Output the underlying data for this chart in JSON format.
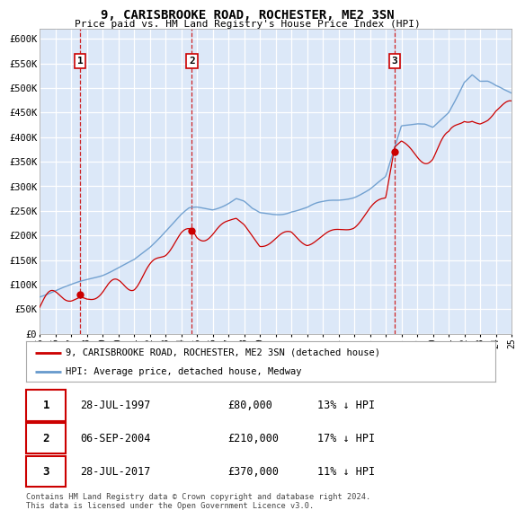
{
  "title": "9, CARISBROOKE ROAD, ROCHESTER, ME2 3SN",
  "subtitle": "Price paid vs. HM Land Registry's House Price Index (HPI)",
  "property_label": "9, CARISBROOKE ROAD, ROCHESTER, ME2 3SN (detached house)",
  "hpi_label": "HPI: Average price, detached house, Medway",
  "sale_points": [
    {
      "date_num": 1997.57,
      "price": 80000,
      "label": "1"
    },
    {
      "date_num": 2004.68,
      "price": 210000,
      "label": "2"
    },
    {
      "date_num": 2017.57,
      "price": 370000,
      "label": "3"
    }
  ],
  "sale_annotations": [
    {
      "label": "1",
      "date": "28-JUL-1997",
      "price": "£80,000",
      "hpi_diff": "13% ↓ HPI"
    },
    {
      "label": "2",
      "date": "06-SEP-2004",
      "price": "£210,000",
      "hpi_diff": "17% ↓ HPI"
    },
    {
      "label": "3",
      "date": "28-JUL-2017",
      "price": "£370,000",
      "hpi_diff": "11% ↓ HPI"
    }
  ],
  "xmin": 1995.0,
  "xmax": 2025.0,
  "ymin": 0,
  "ymax": 620000,
  "yticks": [
    0,
    50000,
    100000,
    150000,
    200000,
    250000,
    300000,
    350000,
    400000,
    450000,
    500000,
    550000,
    600000
  ],
  "ytick_labels": [
    "£0",
    "£50K",
    "£100K",
    "£150K",
    "£200K",
    "£250K",
    "£300K",
    "£350K",
    "£400K",
    "£450K",
    "£500K",
    "£550K",
    "£600K"
  ],
  "property_color": "#cc0000",
  "hpi_color": "#6699cc",
  "background_color": "#dce8f8",
  "footer": "Contains HM Land Registry data © Crown copyright and database right 2024.\nThis data is licensed under the Open Government Licence v3.0.",
  "xtick_years": [
    1995,
    1996,
    1997,
    1998,
    1999,
    2000,
    2001,
    2002,
    2003,
    2004,
    2005,
    2006,
    2007,
    2008,
    2009,
    2010,
    2011,
    2012,
    2013,
    2014,
    2015,
    2016,
    2017,
    2018,
    2019,
    2020,
    2021,
    2022,
    2023,
    2024,
    2025
  ]
}
